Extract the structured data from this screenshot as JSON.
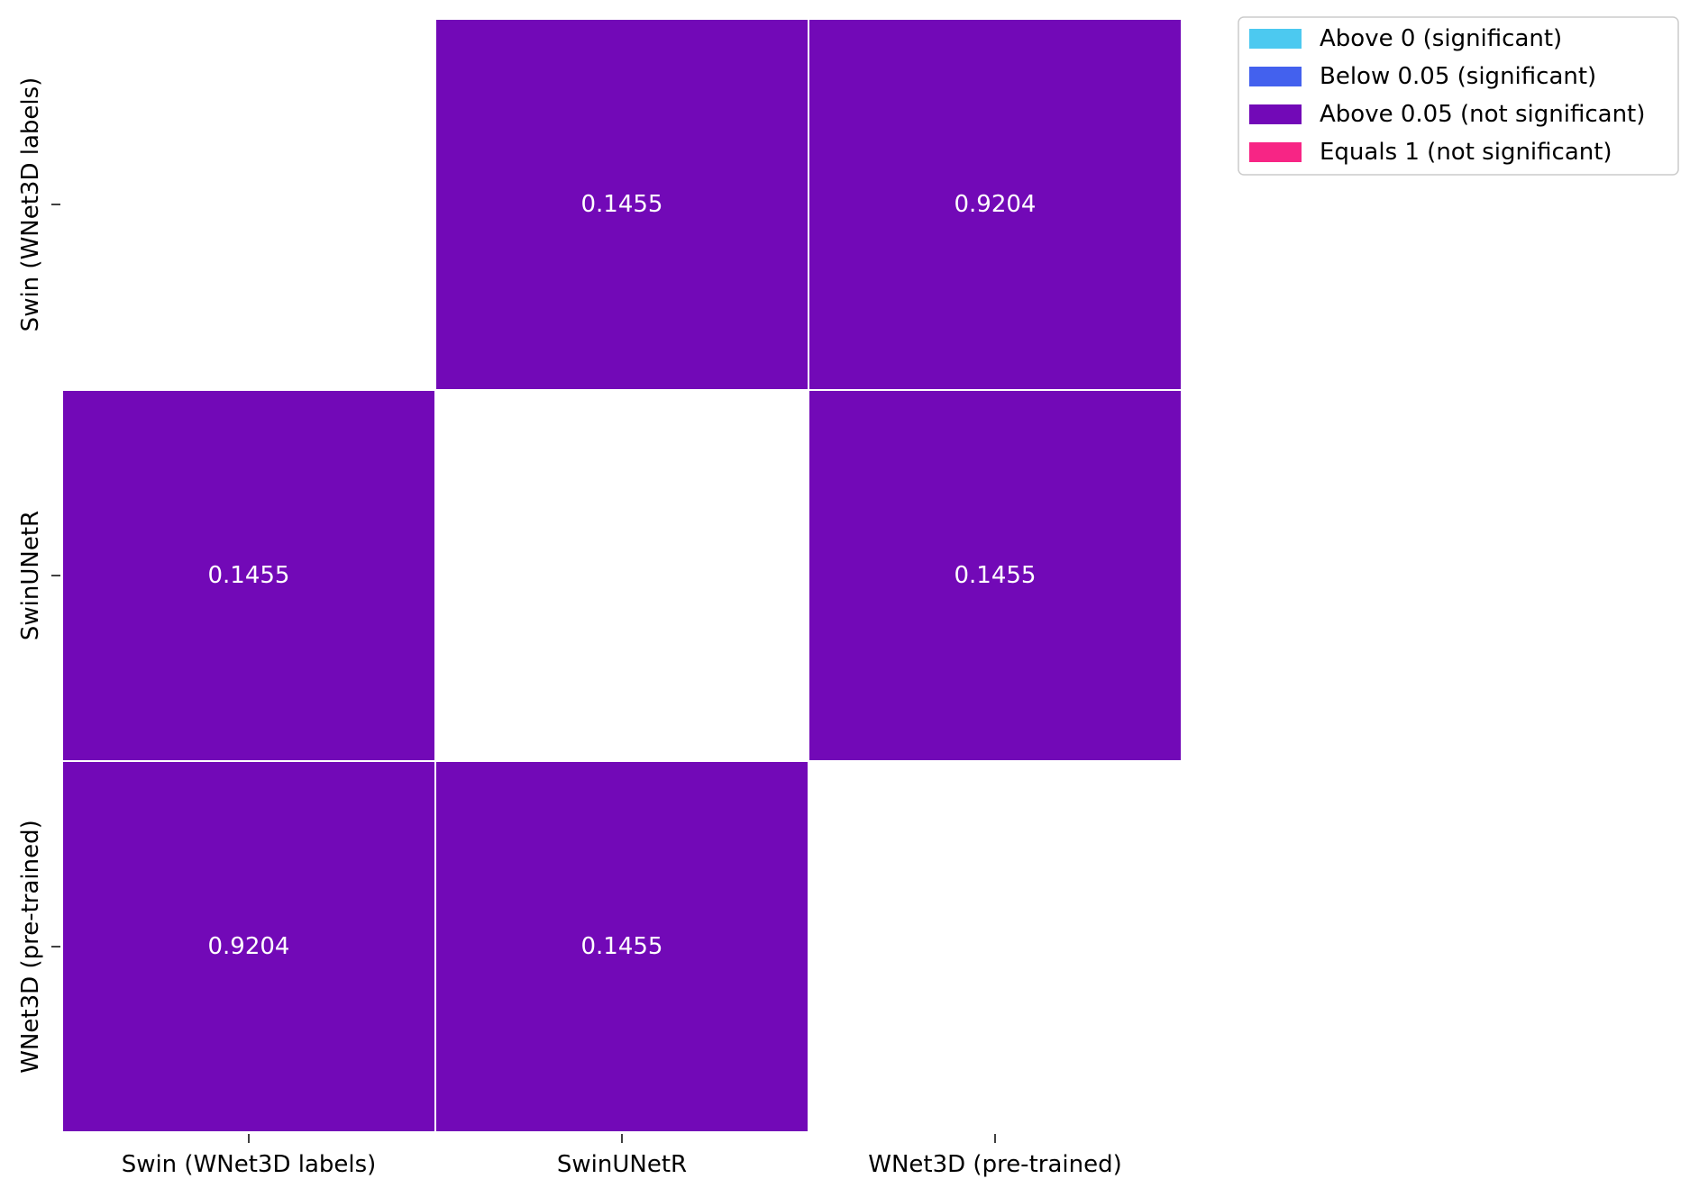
{
  "chart_data": {
    "type": "heatmap",
    "title": "",
    "xlabel": "",
    "ylabel": "",
    "x_categories": [
      "Swin (WNet3D labels)",
      "SwinUNetR",
      "WNet3D (pre-trained)"
    ],
    "y_categories": [
      "Swin (WNet3D labels)",
      "SwinUNetR",
      "WNet3D (pre-trained)"
    ],
    "values": [
      [
        null,
        0.1455,
        0.9204
      ],
      [
        0.1455,
        null,
        0.1455
      ],
      [
        0.9204,
        0.1455,
        null
      ]
    ],
    "value_labels": [
      [
        null,
        "0.1455",
        "0.9204"
      ],
      [
        "0.1455",
        null,
        "0.1455"
      ],
      [
        "0.9204",
        "0.1455",
        null
      ]
    ],
    "legend_position": "outside upper right",
    "legend": [
      {
        "label": "Above 0 (significant)",
        "color": "#4cc9f0"
      },
      {
        "label": "Below 0.05 (significant)",
        "color": "#4361ee"
      },
      {
        "label": "Above 0.05 (not significant)",
        "color": "#7209b7"
      },
      {
        "label": "Equals 1 (not significant)",
        "color": "#f72585"
      }
    ],
    "colors": {
      "not_significant_above_005": "#7209b7",
      "cell_text": "#ffffff",
      "cell_border": "#ffffff"
    }
  }
}
